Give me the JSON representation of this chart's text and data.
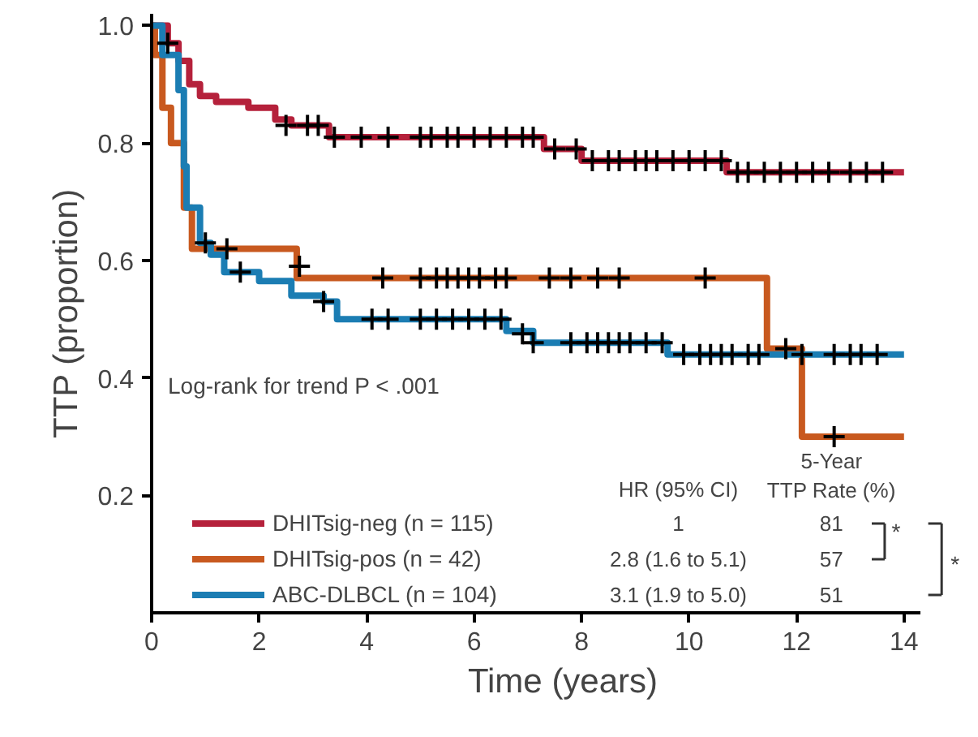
{
  "chart_data": {
    "type": "step",
    "xlabel": "Time (years)",
    "ylabel": "TTP (proportion)",
    "xlim": [
      0,
      14.3
    ],
    "xticks": [
      0,
      2,
      4,
      6,
      8,
      10,
      12,
      14
    ],
    "ylim": [
      0,
      1.02
    ],
    "yticks": [
      {
        "value": 0.2,
        "label": "0.2"
      },
      {
        "value": 0.4,
        "label": "0.4"
      },
      {
        "value": 0.6,
        "label": "0.6"
      },
      {
        "value": 0.8,
        "label": "0.8"
      },
      {
        "value": 1.0,
        "label": "1.0"
      }
    ],
    "grid": false,
    "legend": "bottom left",
    "series": [
      {
        "name": "DHITsig-neg (n = 115)",
        "color": "#b5213b",
        "x": [
          0,
          0.3,
          0.5,
          0.7,
          0.9,
          1.2,
          1.8,
          2.3,
          2.6,
          3.3,
          7.3,
          8.0,
          10.7,
          14
        ],
        "values": [
          1.0,
          0.97,
          0.94,
          0.9,
          0.88,
          0.87,
          0.86,
          0.84,
          0.83,
          0.81,
          0.79,
          0.77,
          0.75,
          0.75
        ]
      },
      {
        "name": "DHITsig-pos (n = 42)",
        "color": "#c8591f",
        "x": [
          0,
          0.06,
          0.2,
          0.36,
          0.6,
          0.75,
          2.7,
          11.45,
          12.1,
          14
        ],
        "values": [
          1.0,
          0.95,
          0.86,
          0.8,
          0.69,
          0.62,
          0.57,
          0.45,
          0.3,
          0.3
        ]
      },
      {
        "name": "ABC-DLBCL (n = 104)",
        "color": "#1b7db3",
        "x": [
          0,
          0.2,
          0.5,
          0.6,
          0.65,
          0.9,
          1.1,
          1.35,
          2.0,
          2.6,
          3.2,
          3.45,
          6.6,
          7.1,
          9.6,
          14
        ],
        "values": [
          1.0,
          0.95,
          0.89,
          0.76,
          0.69,
          0.63,
          0.61,
          0.58,
          0.565,
          0.54,
          0.53,
          0.5,
          0.48,
          0.46,
          0.44,
          0.44
        ]
      },
      {
        "type": "scatter",
        "marker": "cross",
        "color": "#000000",
        "x": [
          0.3,
          2.5,
          2.9,
          3.1,
          3.4,
          3.9,
          4.4,
          5.0,
          5.2,
          5.5,
          5.7,
          6.0,
          6.3,
          6.6,
          6.9,
          7.1,
          7.5,
          7.9,
          8.2,
          8.5,
          8.7,
          9.0,
          9.2,
          9.4,
          9.7,
          10.0,
          10.3,
          10.6,
          10.9,
          11.1,
          11.4,
          11.7,
          12.0,
          12.3,
          12.6,
          13.0,
          13.3,
          13.6
        ],
        "values": [
          0.97,
          0.83,
          0.83,
          0.83,
          0.81,
          0.81,
          0.81,
          0.81,
          0.81,
          0.81,
          0.81,
          0.81,
          0.81,
          0.81,
          0.81,
          0.81,
          0.79,
          0.79,
          0.77,
          0.77,
          0.77,
          0.77,
          0.77,
          0.77,
          0.77,
          0.77,
          0.77,
          0.77,
          0.75,
          0.75,
          0.75,
          0.75,
          0.75,
          0.75,
          0.75,
          0.75,
          0.75,
          0.75
        ]
      },
      {
        "type": "scatter",
        "marker": "cross",
        "color": "#000000",
        "x": [
          1.4,
          2.75,
          4.3,
          5.0,
          5.3,
          5.5,
          5.7,
          5.9,
          6.1,
          6.4,
          6.6,
          7.4,
          7.8,
          8.3,
          8.7,
          10.3,
          11.8,
          12.7
        ],
        "values": [
          0.62,
          0.59,
          0.57,
          0.57,
          0.57,
          0.57,
          0.57,
          0.57,
          0.57,
          0.57,
          0.57,
          0.57,
          0.57,
          0.57,
          0.57,
          0.57,
          0.45,
          0.3
        ]
      },
      {
        "type": "scatter",
        "marker": "cross",
        "color": "#000000",
        "x": [
          1.0,
          1.65,
          3.2,
          4.1,
          4.4,
          5.0,
          5.3,
          5.6,
          5.9,
          6.2,
          6.5,
          6.9,
          7.1,
          7.8,
          8.1,
          8.3,
          8.5,
          8.7,
          8.9,
          9.2,
          9.5,
          9.9,
          10.2,
          10.4,
          10.6,
          10.8,
          11.1,
          11.3,
          12.1,
          12.7,
          13.0,
          13.2,
          13.5
        ],
        "values": [
          0.63,
          0.58,
          0.53,
          0.5,
          0.5,
          0.5,
          0.5,
          0.5,
          0.5,
          0.5,
          0.5,
          0.475,
          0.46,
          0.46,
          0.46,
          0.46,
          0.46,
          0.46,
          0.46,
          0.46,
          0.46,
          0.44,
          0.44,
          0.44,
          0.44,
          0.44,
          0.44,
          0.44,
          0.44,
          0.44,
          0.44,
          0.44,
          0.44
        ]
      }
    ],
    "annotations": [
      "Log-rank for trend P < .001",
      "HR (95% CI)",
      "5-Year\nTTP Rate (%)",
      "1",
      "81",
      "2.8 (1.6 to 5.1)",
      "57",
      "3.1 (1.9 to 5.0)",
      "51",
      "*",
      "*"
    ]
  }
}
